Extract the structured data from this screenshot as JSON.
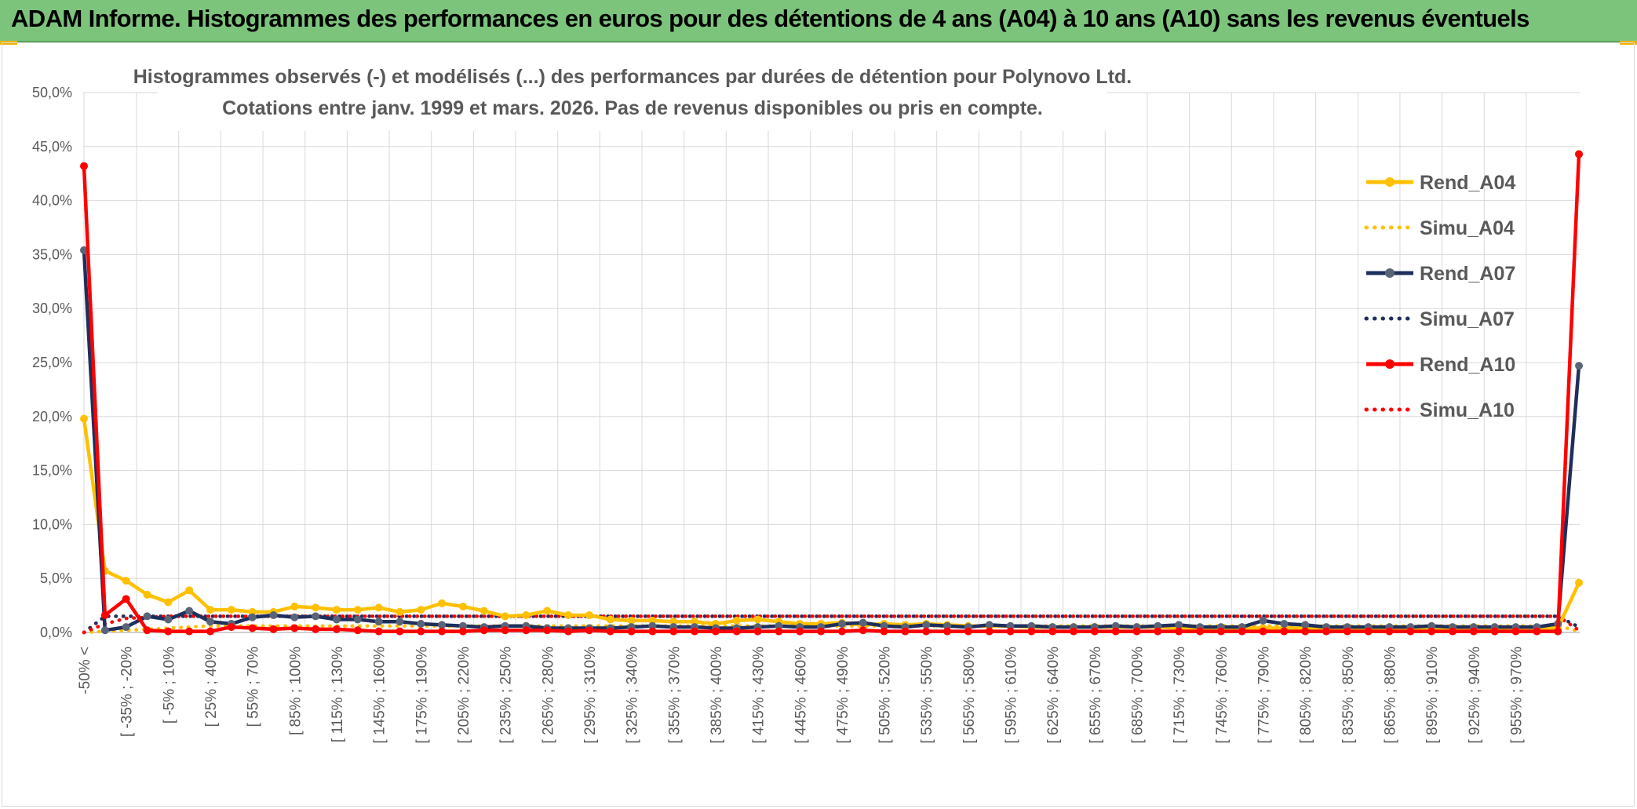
{
  "banner": {
    "title": "ADAM Informe. Histogrammes des performances en euros pour des détentions de 4 ans (A04) à 10 ans (A10) sans les revenus éventuels"
  },
  "colors": {
    "banner_bg": "#7cc47c",
    "A04": "#ffc000",
    "A07": "#1f2f5c",
    "A10": "#ff0000",
    "A07_marker": "#5a6478",
    "grid": "#d9d9d9",
    "text": "#595959"
  },
  "chart_data": {
    "type": "line",
    "title": "Histogrammes observés (-) et modélisés (...) des performances par durées de détention pour Polynovo Ltd.",
    "subtitle": "Cotations entre janv. 1999 et mars. 2026. Pas de revenus disponibles ou pris en compte.",
    "ylim": [
      0,
      50
    ],
    "y_ticks": [
      "0,0%",
      "5,0%",
      "10,0%",
      "15,0%",
      "20,0%",
      "25,0%",
      "30,0%",
      "35,0%",
      "40,0%",
      "45,0%",
      "50,0%"
    ],
    "grid": true,
    "legend_position": "right",
    "x_tick_labels": [
      "-50% <",
      "[ -35% ; -20%",
      "[ -5% ; 10%",
      "[ 25% ; 40%",
      "[ 55% ; 70%",
      "[ 85% ; 100%",
      "[ 115% ; 130%",
      "[ 145% ; 160%",
      "[ 175% ; 190%",
      "[ 205% ; 220%",
      "[ 235% ; 250%",
      "[ 265% ; 280%",
      "[ 295% ; 310%",
      "[ 325% ; 340%",
      "[ 355% ; 370%",
      "[ 385% ; 400%",
      "[ 415% ; 430%",
      "[ 445% ; 460%",
      "[ 475% ; 490%",
      "[ 505% ; 520%",
      "[ 535% ; 550%",
      "[ 565% ; 580%",
      "[ 595% ; 610%",
      "[ 625% ; 640%",
      "[ 655% ; 670%",
      "[ 685% ; 700%",
      "[ 715% ; 730%",
      "[ 745% ; 760%",
      "[ 775% ; 790%",
      "[ 805% ; 820%",
      "[ 835% ; 850%",
      "[ 865% ; 880%",
      "[ 895% ; 910%",
      "[ 925% ; 940%",
      "[ 955% ; 970%"
    ],
    "series": [
      {
        "name": "Rend_A04",
        "style": "solid",
        "color": "#ffc000",
        "values": [
          19.8,
          5.7,
          4.8,
          3.5,
          2.8,
          3.9,
          2.1,
          2.1,
          1.9,
          1.9,
          2.4,
          2.3,
          2.1,
          2.1,
          2.3,
          1.9,
          2.1,
          2.7,
          2.4,
          2.0,
          1.5,
          1.6,
          2.0,
          1.6,
          1.6,
          1.2,
          1.1,
          1.1,
          1.0,
          1.0,
          0.8,
          1.1,
          1.2,
          1.0,
          0.8,
          0.8,
          0.9,
          0.7,
          0.8,
          0.7,
          0.8,
          0.7,
          0.6,
          0.6,
          0.6,
          0.5,
          0.5,
          0.5,
          0.5,
          0.5,
          0.5,
          0.5,
          0.4,
          0.4,
          0.4,
          0.4,
          0.4,
          0.4,
          0.4,
          0.4,
          0.4,
          0.4,
          0.4,
          0.4,
          0.4,
          0.4,
          0.4,
          0.4,
          0.4,
          0.4,
          0.4,
          4.6
        ]
      },
      {
        "name": "Simu_A04",
        "style": "dotted",
        "color": "#ffc000",
        "values": [
          0.0,
          0.1,
          0.2,
          0.3,
          0.4,
          0.5,
          0.6,
          0.6,
          0.6,
          0.6,
          0.6,
          0.6,
          0.6,
          0.6,
          0.6,
          0.6,
          0.6,
          0.6,
          0.6,
          0.6,
          0.6,
          0.6,
          0.6,
          0.6,
          0.6,
          0.6,
          0.6,
          0.6,
          0.6,
          0.6,
          0.6,
          0.6,
          0.6,
          0.6,
          0.6,
          0.6,
          0.6,
          0.6,
          0.6,
          0.6,
          0.6,
          0.6,
          0.6,
          0.6,
          0.6,
          0.6,
          0.6,
          0.6,
          0.6,
          0.6,
          0.6,
          0.6,
          0.6,
          0.6,
          0.6,
          0.6,
          0.6,
          0.6,
          0.6,
          0.6,
          0.6,
          0.6,
          0.6,
          0.6,
          0.6,
          0.6,
          0.6,
          0.6,
          0.6,
          0.6,
          0.6,
          0.1
        ]
      },
      {
        "name": "Rend_A07",
        "style": "solid",
        "color": "#1f2f5c",
        "values": [
          35.4,
          0.2,
          0.5,
          1.5,
          1.2,
          2.0,
          1.0,
          0.8,
          1.4,
          1.6,
          1.4,
          1.5,
          1.2,
          1.2,
          1.0,
          1.0,
          0.8,
          0.7,
          0.6,
          0.5,
          0.6,
          0.6,
          0.4,
          0.4,
          0.4,
          0.4,
          0.5,
          0.6,
          0.5,
          0.5,
          0.4,
          0.4,
          0.5,
          0.6,
          0.5,
          0.5,
          0.8,
          0.9,
          0.6,
          0.5,
          0.7,
          0.6,
          0.5,
          0.7,
          0.6,
          0.6,
          0.5,
          0.5,
          0.5,
          0.6,
          0.5,
          0.6,
          0.7,
          0.5,
          0.5,
          0.5,
          1.1,
          0.8,
          0.7,
          0.5,
          0.5,
          0.5,
          0.5,
          0.5,
          0.6,
          0.5,
          0.5,
          0.5,
          0.5,
          0.5,
          0.8,
          24.7
        ]
      },
      {
        "name": "Simu_A07",
        "style": "dotted",
        "color": "#1f2f5c",
        "values": [
          0.0,
          1.5,
          1.5,
          1.5,
          1.5,
          1.5,
          1.5,
          1.5,
          1.5,
          1.5,
          1.5,
          1.5,
          1.5,
          1.5,
          1.5,
          1.5,
          1.5,
          1.5,
          1.5,
          1.5,
          1.5,
          1.5,
          1.5,
          1.5,
          1.5,
          1.5,
          1.5,
          1.5,
          1.5,
          1.5,
          1.5,
          1.5,
          1.5,
          1.5,
          1.5,
          1.5,
          1.5,
          1.5,
          1.5,
          1.5,
          1.5,
          1.5,
          1.5,
          1.5,
          1.5,
          1.5,
          1.5,
          1.5,
          1.5,
          1.5,
          1.5,
          1.5,
          1.5,
          1.5,
          1.5,
          1.5,
          1.5,
          1.5,
          1.5,
          1.5,
          1.5,
          1.5,
          1.5,
          1.5,
          1.5,
          1.5,
          1.5,
          1.5,
          1.5,
          1.5,
          1.5,
          0.5
        ]
      },
      {
        "name": "Rend_A10",
        "style": "solid",
        "color": "#ff0000",
        "values": [
          43.2,
          1.6,
          3.1,
          0.2,
          0.1,
          0.1,
          0.1,
          0.5,
          0.4,
          0.3,
          0.4,
          0.3,
          0.3,
          0.2,
          0.1,
          0.1,
          0.1,
          0.1,
          0.1,
          0.2,
          0.2,
          0.2,
          0.2,
          0.1,
          0.2,
          0.1,
          0.1,
          0.1,
          0.1,
          0.1,
          0.1,
          0.1,
          0.1,
          0.1,
          0.1,
          0.1,
          0.1,
          0.2,
          0.1,
          0.1,
          0.1,
          0.1,
          0.1,
          0.1,
          0.1,
          0.1,
          0.1,
          0.1,
          0.1,
          0.1,
          0.1,
          0.1,
          0.1,
          0.1,
          0.1,
          0.1,
          0.1,
          0.1,
          0.1,
          0.1,
          0.1,
          0.1,
          0.1,
          0.1,
          0.1,
          0.1,
          0.1,
          0.1,
          0.1,
          0.1,
          0.1,
          44.3
        ]
      },
      {
        "name": "Simu_A10",
        "style": "dotted",
        "color": "#ff0000",
        "values": [
          0.0,
          0.8,
          1.3,
          1.4,
          1.5,
          1.5,
          1.5,
          1.5,
          1.5,
          1.5,
          1.5,
          1.5,
          1.5,
          1.5,
          1.5,
          1.5,
          1.5,
          1.5,
          1.5,
          1.5,
          1.5,
          1.5,
          1.5,
          1.5,
          1.5,
          1.5,
          1.5,
          1.5,
          1.5,
          1.5,
          1.5,
          1.5,
          1.5,
          1.5,
          1.5,
          1.5,
          1.5,
          1.5,
          1.5,
          1.5,
          1.5,
          1.5,
          1.5,
          1.5,
          1.5,
          1.5,
          1.5,
          1.5,
          1.5,
          1.5,
          1.5,
          1.5,
          1.5,
          1.5,
          1.5,
          1.5,
          1.5,
          1.5,
          1.5,
          1.5,
          1.5,
          1.5,
          1.5,
          1.5,
          1.5,
          1.5,
          1.5,
          1.5,
          1.5,
          1.5,
          1.5,
          0.2
        ]
      }
    ]
  }
}
